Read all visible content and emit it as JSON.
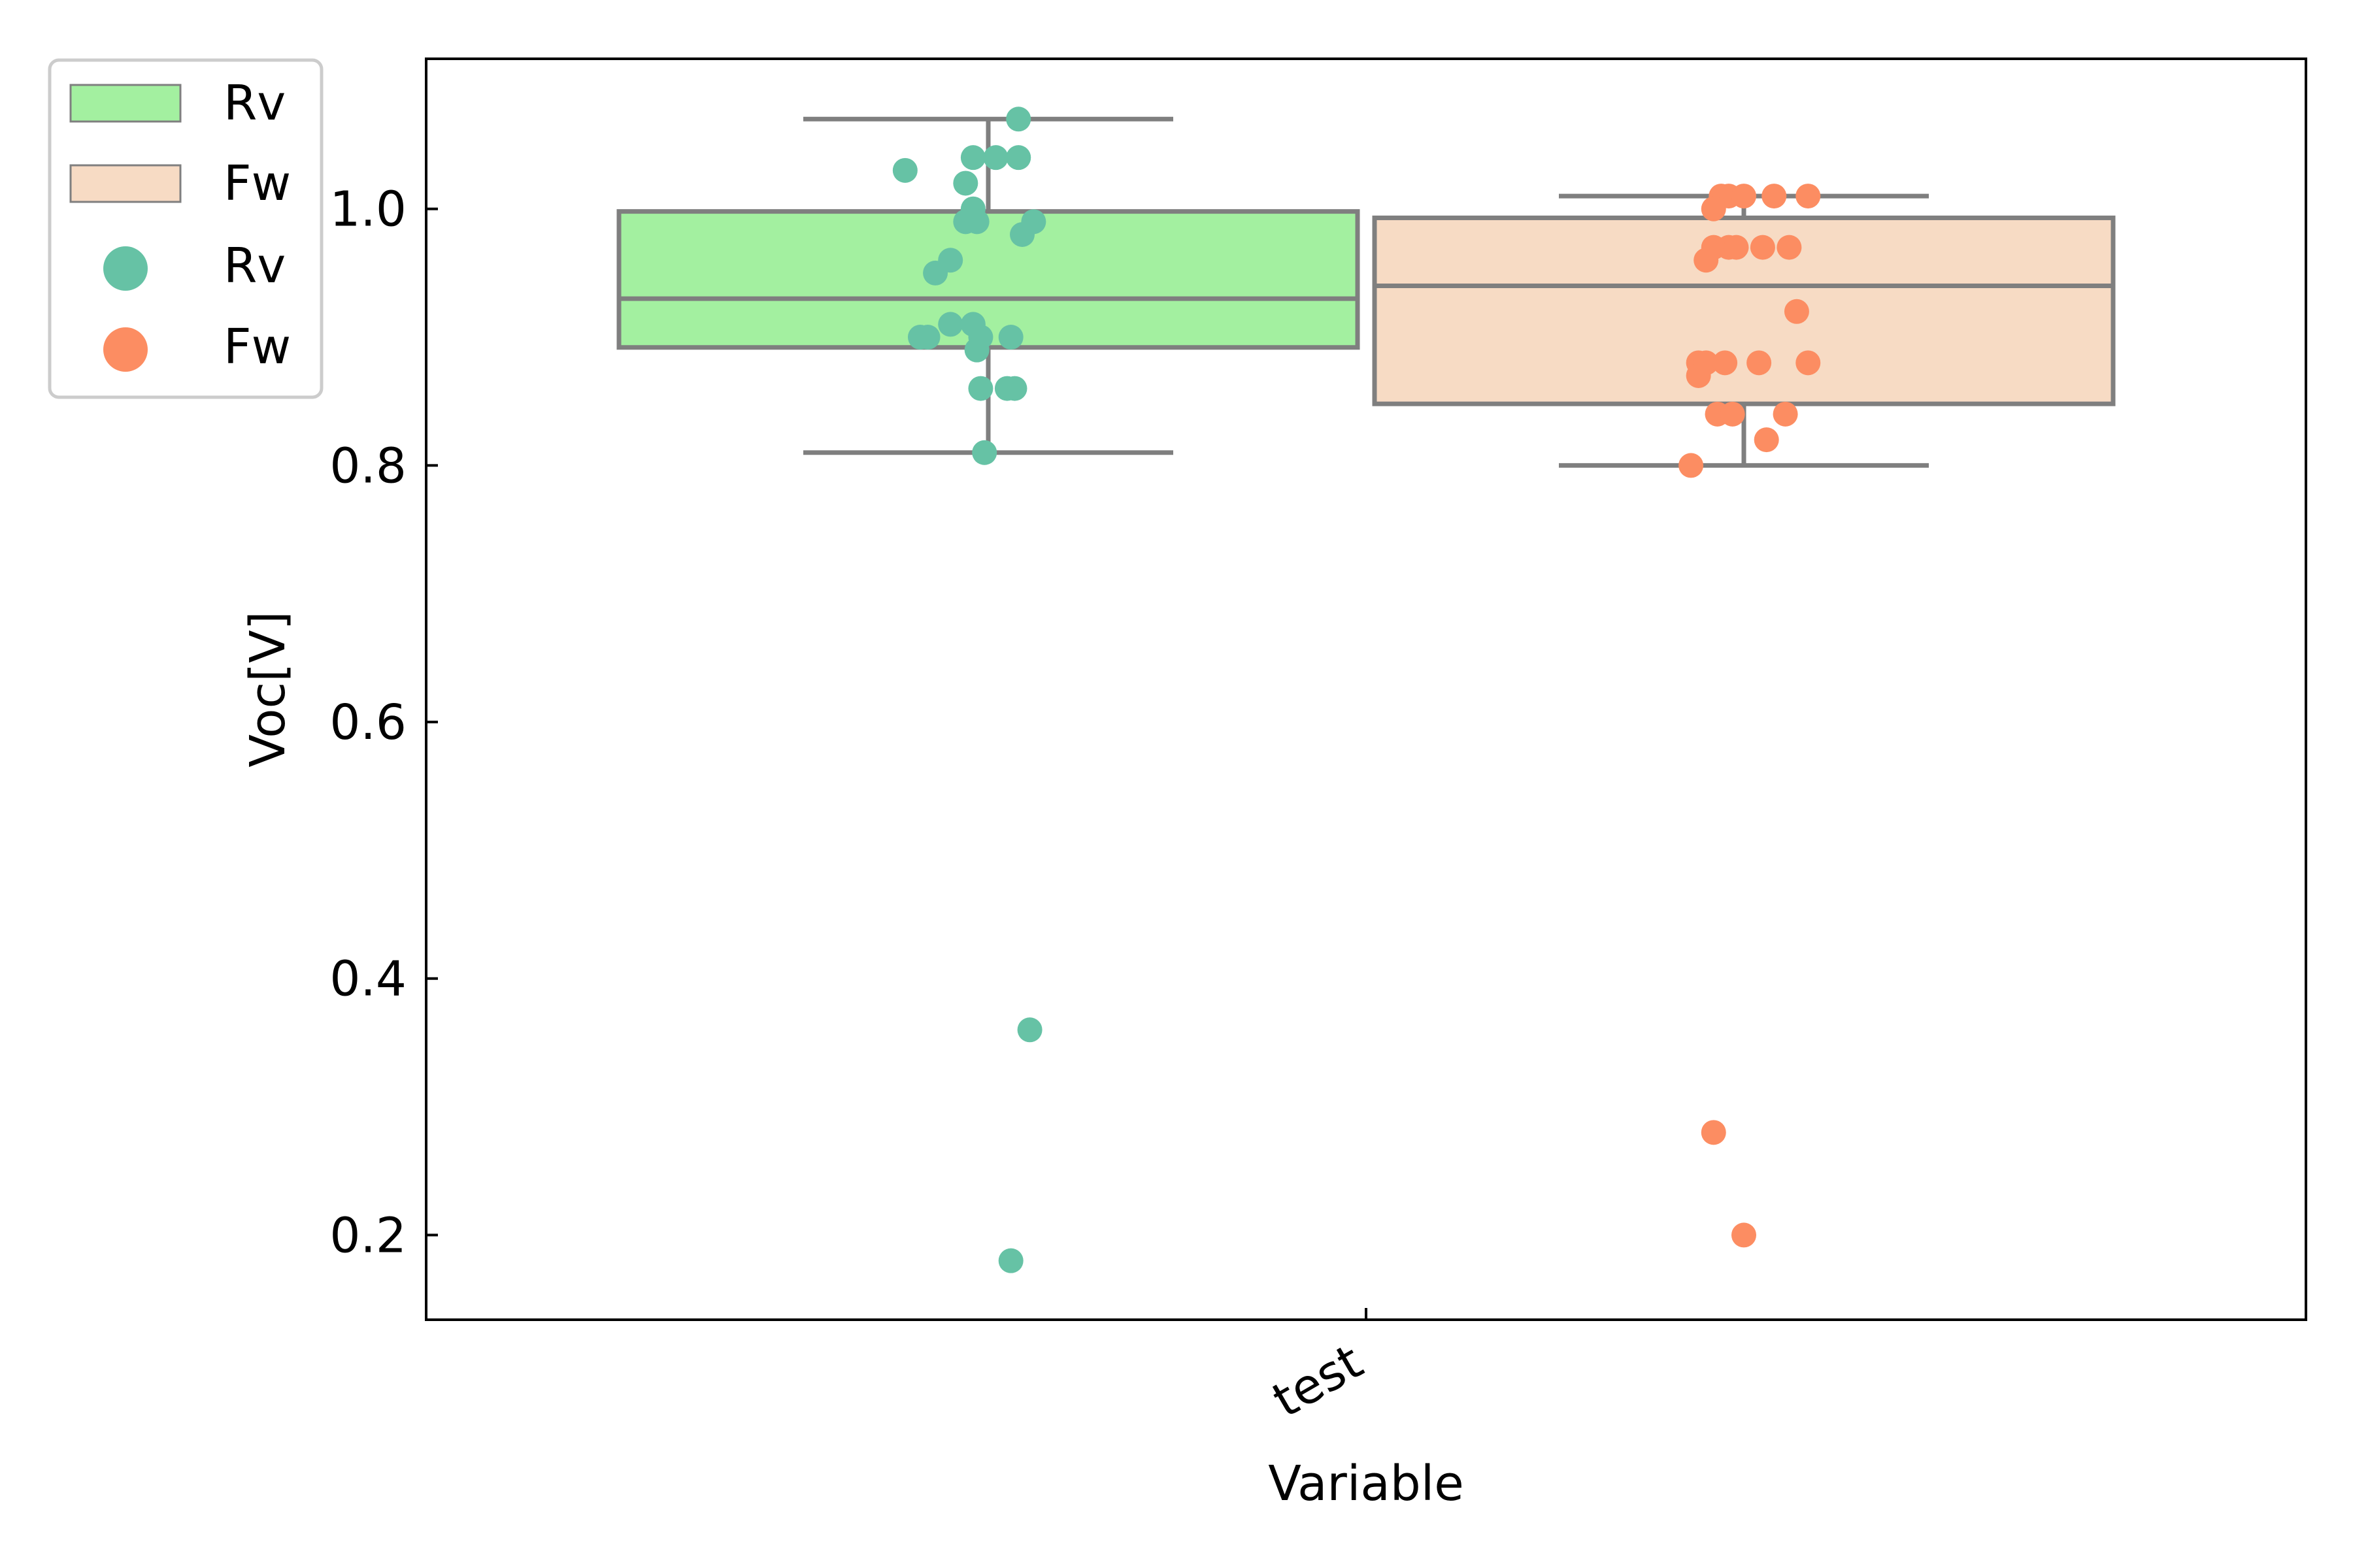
{
  "chart_data": {
    "type": "box",
    "title": "",
    "xlabel": "Variable",
    "ylabel": "Voc[V]",
    "categories": [
      "test"
    ],
    "ylim": [
      0.134,
      1.117
    ],
    "yticks": [
      "0.2",
      "0.4",
      "0.6",
      "0.8",
      "1.0"
    ],
    "grid": false,
    "legend_position": "upper-left-outside",
    "legend": [
      {
        "label": "Rv",
        "kind": "box"
      },
      {
        "label": "Fw",
        "kind": "box"
      },
      {
        "label": "Rv",
        "kind": "point"
      },
      {
        "label": "Fw",
        "kind": "point"
      }
    ],
    "series": [
      {
        "name": "Rv",
        "box": {
          "whisker_low": 0.81,
          "q1": 0.892,
          "median": 0.93,
          "q3": 0.998,
          "whisker_high": 1.07
        },
        "box_color": "#a3f0a0",
        "point_color": "#66c2a5",
        "points": [
          [
            -0.22,
            1.03
          ],
          [
            0.08,
            1.07
          ],
          [
            0.02,
            1.04
          ],
          [
            -0.04,
            1.04
          ],
          [
            0.08,
            1.04
          ],
          [
            -0.06,
            1.02
          ],
          [
            -0.04,
            1.0
          ],
          [
            -0.06,
            0.99
          ],
          [
            -0.03,
            0.99
          ],
          [
            0.12,
            0.99
          ],
          [
            0.09,
            0.98
          ],
          [
            -0.1,
            0.96
          ],
          [
            -0.14,
            0.95
          ],
          [
            -0.1,
            0.91
          ],
          [
            -0.04,
            0.91
          ],
          [
            -0.18,
            0.9
          ],
          [
            -0.16,
            0.9
          ],
          [
            -0.02,
            0.9
          ],
          [
            0.06,
            0.9
          ],
          [
            -0.03,
            0.89
          ],
          [
            -0.02,
            0.86
          ],
          [
            0.05,
            0.86
          ],
          [
            0.07,
            0.86
          ],
          [
            -0.01,
            0.81
          ],
          [
            0.11,
            0.36
          ],
          [
            0.06,
            0.18
          ]
        ]
      },
      {
        "name": "Fw",
        "box": {
          "whisker_low": 0.8,
          "q1": 0.848,
          "median": 0.94,
          "q3": 0.993,
          "whisker_high": 1.01
        },
        "box_color": "#f7dbc4",
        "point_color": "#fc8d62",
        "points": [
          [
            -0.06,
            1.01
          ],
          [
            -0.04,
            1.01
          ],
          [
            0.0,
            1.01
          ],
          [
            0.08,
            1.01
          ],
          [
            0.17,
            1.01
          ],
          [
            -0.08,
            1.0
          ],
          [
            -0.08,
            0.97
          ],
          [
            -0.04,
            0.97
          ],
          [
            -0.02,
            0.97
          ],
          [
            0.05,
            0.97
          ],
          [
            0.12,
            0.97
          ],
          [
            -0.1,
            0.96
          ],
          [
            0.14,
            0.92
          ],
          [
            -0.12,
            0.88
          ],
          [
            -0.1,
            0.88
          ],
          [
            -0.05,
            0.88
          ],
          [
            0.04,
            0.88
          ],
          [
            0.17,
            0.88
          ],
          [
            -0.12,
            0.87
          ],
          [
            -0.07,
            0.84
          ],
          [
            -0.03,
            0.84
          ],
          [
            0.11,
            0.84
          ],
          [
            0.06,
            0.82
          ],
          [
            -0.14,
            0.8
          ],
          [
            -0.08,
            0.28
          ],
          [
            0.0,
            0.2
          ]
        ]
      }
    ]
  }
}
